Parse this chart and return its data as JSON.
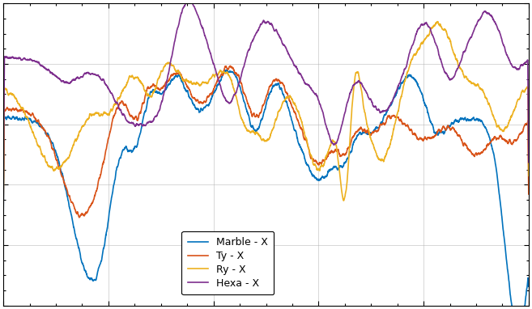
{
  "title": "",
  "xlabel": "",
  "ylabel": "",
  "background_color": "#ffffff",
  "axes_facecolor": "#ffffff",
  "grid_color": "#b0b0b0",
  "line_colors": {
    "marble": "#0072BD",
    "ty": "#D95319",
    "ry": "#EDB120",
    "hexa": "#7E2F8E"
  },
  "legend_labels": [
    "Marble - X",
    "Ty - X",
    "Ry - X",
    "Hexa - X"
  ],
  "legend_facecolor": "#ffffff",
  "legend_edgecolor": "#000000",
  "line_width": 1.2,
  "ylim_rel": [
    0.0,
    1.0
  ],
  "n_points": 3000
}
